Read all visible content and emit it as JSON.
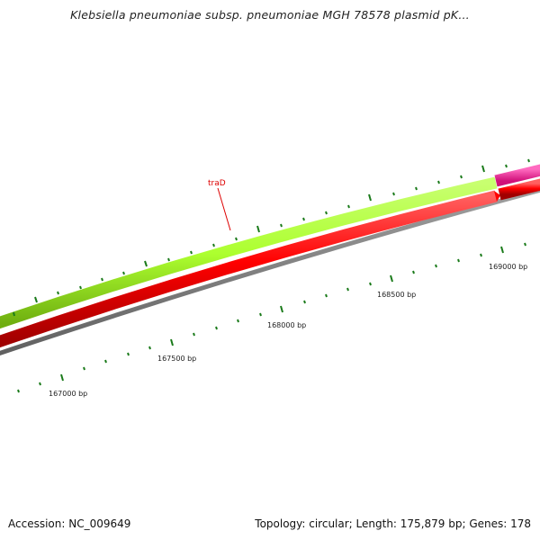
{
  "title": "Klebsiella pneumoniae subsp. pneumoniae MGH 78578 plasmid pK...",
  "footer": {
    "accession": "Accession: NC_009649",
    "summary": "Topology: circular; Length: 175,879 bp; Genes: 178"
  },
  "gene_label": "traD",
  "scale_labels": [
    "167000 bp",
    "167500 bp",
    "168000 bp",
    "168500 bp",
    "169000 bp"
  ],
  "colors": {
    "green_feature": "#adff2f",
    "magenta_feature": "#ff1493",
    "red_feature": "#ff0000",
    "backbone": "#808080",
    "ticks": "#1a7a1a",
    "gene_label": "#dd0000"
  }
}
